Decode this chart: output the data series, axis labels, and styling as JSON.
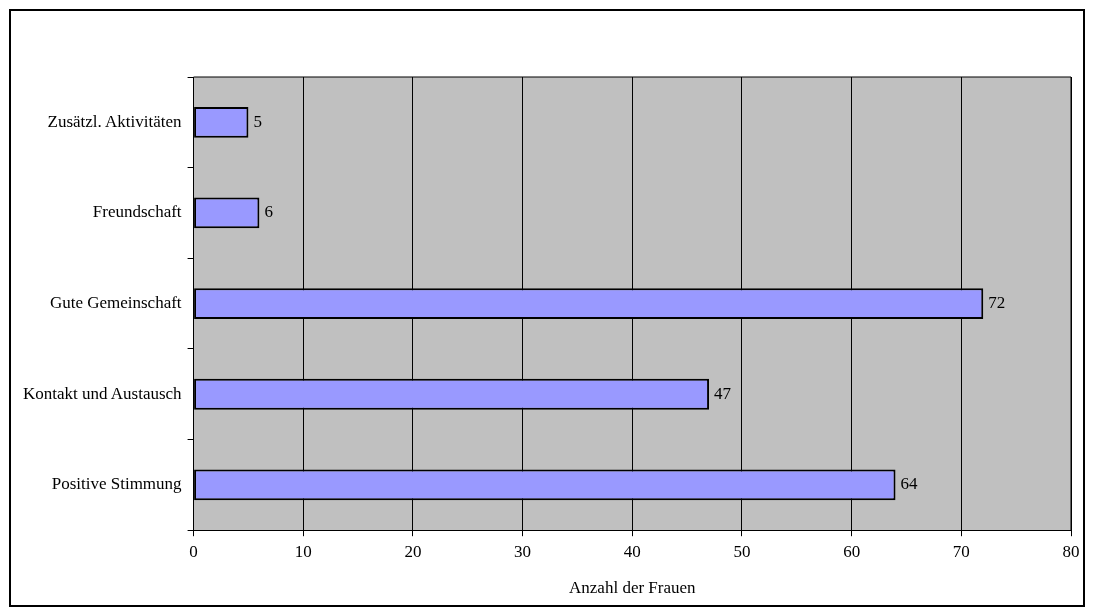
{
  "chart_data": {
    "type": "bar",
    "orientation": "horizontal",
    "categories": [
      "Zusätzl. Aktivitäten",
      "Freundschaft",
      "Gute Gemeinschaft",
      "Kontakt und Austausch",
      "Positive Stimmung"
    ],
    "values": [
      5,
      6,
      72,
      47,
      64
    ],
    "color": "#9999ff",
    "xlabel": "Anzahl der Frauen",
    "xlim": [
      0,
      80
    ],
    "xticks": [
      0,
      10,
      20,
      30,
      40,
      50,
      60,
      70,
      80
    ],
    "grid": "x",
    "legend": false,
    "data_labels": true
  }
}
